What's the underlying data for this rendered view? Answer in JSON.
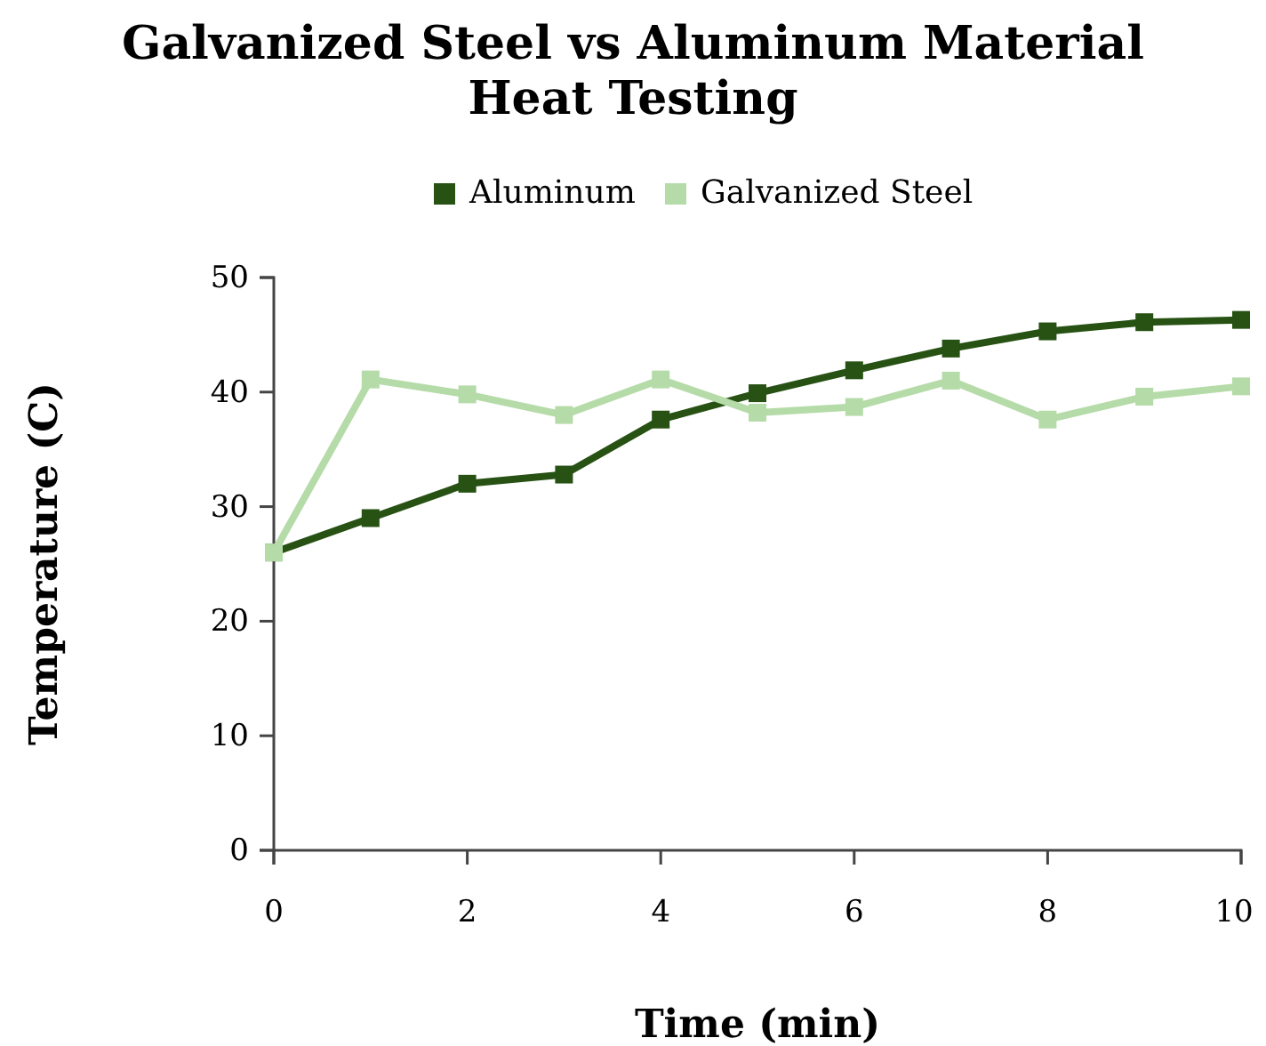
{
  "chart_data": {
    "type": "line",
    "title": "Galvanized Steel vs Aluminum Material Heat Testing",
    "xlabel": "Time (min)",
    "ylabel": "Temperature (C)",
    "x": [
      0,
      1,
      2,
      3,
      4,
      5,
      6,
      7,
      8,
      9,
      10
    ],
    "series": [
      {
        "name": "Aluminum",
        "color": "#275214",
        "values": [
          26,
          29,
          32,
          32.8,
          37.6,
          39.9,
          41.9,
          43.8,
          45.3,
          46.1,
          46.3
        ]
      },
      {
        "name": "Galvanized Steel",
        "color": "#b5dba8",
        "values": [
          26,
          41.1,
          39.8,
          38,
          41.1,
          38.2,
          38.7,
          41,
          37.6,
          39.6,
          40.5
        ]
      }
    ],
    "xlim": [
      0,
      10
    ],
    "xticks": [
      0,
      2,
      4,
      6,
      8,
      10
    ],
    "ylim": [
      0,
      50
    ],
    "yticks": [
      0,
      10,
      20,
      30,
      40,
      50
    ],
    "grid": false,
    "legend": "top",
    "marker": "square",
    "line_style": "solid"
  }
}
